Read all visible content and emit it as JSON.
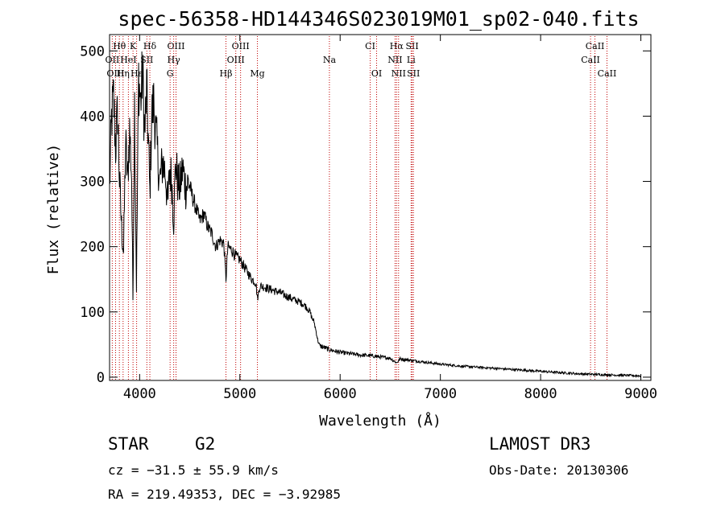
{
  "chart_data": {
    "type": "line",
    "title": "spec-56358-HD144346S023019M01_sp02-040.fits",
    "xlabel": "Wavelength (Å)",
    "ylabel": "Flux (relative)",
    "xlim": [
      3700,
      9100
    ],
    "ylim": [
      -5,
      525
    ],
    "x_ticks": [
      4000,
      5000,
      6000,
      7000,
      8000,
      9000
    ],
    "y_ticks": [
      0,
      100,
      200,
      300,
      400,
      500
    ],
    "series": [
      {
        "name": "flux",
        "x": [
          3700,
          3720,
          3740,
          3760,
          3780,
          3800,
          3820,
          3840,
          3860,
          3880,
          3900,
          3920,
          3933,
          3950,
          3968,
          3990,
          4010,
          4030,
          4050,
          4070,
          4090,
          4102,
          4120,
          4140,
          4160,
          4180,
          4200,
          4230,
          4260,
          4280,
          4300,
          4320,
          4340,
          4360,
          4380,
          4400,
          4430,
          4460,
          4490,
          4520,
          4560,
          4600,
          4640,
          4680,
          4720,
          4760,
          4800,
          4840,
          4861,
          4880,
          4920,
          4960,
          5000,
          5040,
          5080,
          5120,
          5160,
          5175,
          5200,
          5250,
          5300,
          5350,
          5400,
          5450,
          5500,
          5550,
          5600,
          5650,
          5700,
          5720,
          5740,
          5760,
          5780,
          5800,
          5850,
          5893,
          5950,
          6000,
          6100,
          6200,
          6300,
          6400,
          6500,
          6563,
          6600,
          6700,
          6800,
          6900,
          7000,
          7200,
          7400,
          7600,
          7800,
          8000,
          8200,
          8400,
          8600,
          8800,
          9000
        ],
        "y": [
          290,
          395,
          430,
          350,
          410,
          300,
          230,
          190,
          360,
          300,
          380,
          310,
          120,
          420,
          140,
          460,
          420,
          470,
          370,
          440,
          350,
          280,
          400,
          420,
          380,
          340,
          300,
          330,
          310,
          260,
          320,
          300,
          240,
          330,
          300,
          290,
          320,
          290,
          300,
          280,
          260,
          240,
          250,
          230,
          220,
          200,
          210,
          205,
          150,
          200,
          195,
          185,
          180,
          170,
          160,
          150,
          145,
          120,
          140,
          138,
          135,
          132,
          130,
          125,
          122,
          118,
          115,
          110,
          100,
          90,
          85,
          70,
          55,
          48,
          45,
          42,
          40,
          38,
          36,
          34,
          33,
          31,
          29,
          22,
          28,
          26,
          24,
          22,
          20,
          17,
          15,
          13,
          11,
          9,
          7,
          5,
          4,
          3,
          2
        ]
      }
    ],
    "spectral_lines": [
      {
        "name": "Hθ",
        "wave": 3798,
        "row": 1
      },
      {
        "name": "K",
        "wave": 3934,
        "row": 1
      },
      {
        "name": "Hδ",
        "wave": 4102,
        "row": 1
      },
      {
        "name": "OIII",
        "wave": 4363,
        "row": 1
      },
      {
        "name": "OIII",
        "wave": 5007,
        "row": 1
      },
      {
        "name": "CI",
        "wave": 6300,
        "row": 1
      },
      {
        "name": "Hα",
        "wave": 6563,
        "row": 1
      },
      {
        "name": "SII",
        "wave": 6718,
        "row": 1
      },
      {
        "name": "CaII",
        "wave": 8542,
        "row": 1
      },
      {
        "name": "OII",
        "wave": 3727,
        "row": 2
      },
      {
        "name": "HeI",
        "wave": 3888,
        "row": 2
      },
      {
        "name": "SII",
        "wave": 4072,
        "row": 2
      },
      {
        "name": "Hγ",
        "wave": 4340,
        "row": 2
      },
      {
        "name": "OIII",
        "wave": 4959,
        "row": 2
      },
      {
        "name": "Na",
        "wave": 5893,
        "row": 2
      },
      {
        "name": "NII",
        "wave": 6548,
        "row": 2
      },
      {
        "name": "Li",
        "wave": 6708,
        "row": 2
      },
      {
        "name": "CaII",
        "wave": 8498,
        "row": 2
      },
      {
        "name": "OIII",
        "wave": 3760,
        "row": 3
      },
      {
        "name": "Hη",
        "wave": 3835,
        "row": 3
      },
      {
        "name": "Hε",
        "wave": 3970,
        "row": 3
      },
      {
        "name": "G",
        "wave": 4304,
        "row": 3
      },
      {
        "name": "Hβ",
        "wave": 4861,
        "row": 3
      },
      {
        "name": "Mg",
        "wave": 5175,
        "row": 3
      },
      {
        "name": "OI",
        "wave": 6364,
        "row": 3
      },
      {
        "name": "NII",
        "wave": 6583,
        "row": 3
      },
      {
        "name": "SII",
        "wave": 6731,
        "row": 3
      },
      {
        "name": "CaII",
        "wave": 8662,
        "row": 3
      }
    ]
  },
  "info": {
    "object_class": "STAR",
    "subclass": "G2",
    "survey": "LAMOST DR3",
    "cz": "cz = −31.5 ± 55.9 km/s",
    "obs_date": "Obs-Date: 20130306",
    "coords": "RA = 219.49353, DEC =  −3.92985"
  }
}
